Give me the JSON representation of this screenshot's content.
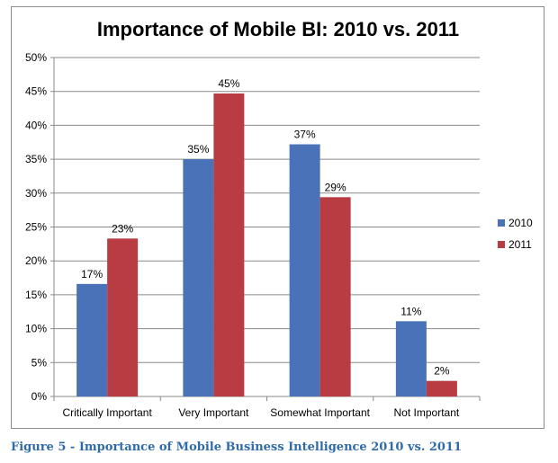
{
  "caption": "Figure 5 - Importance of Mobile Business Intelligence 2010 vs. 2011",
  "chart_data": {
    "type": "bar",
    "title": "Importance of Mobile BI: 2010 vs. 2011",
    "xlabel": "",
    "ylabel": "",
    "categories": [
      "Critically Important",
      "Very Important",
      "Somewhat Important",
      "Not Important"
    ],
    "series": [
      {
        "name": "2010",
        "color": "#4a72b8",
        "values": [
          16.6,
          35,
          37.2,
          11.1
        ],
        "labels": [
          "17%",
          "35%",
          "37%",
          "11%"
        ]
      },
      {
        "name": "2011",
        "color": "#b83c42",
        "values": [
          23.3,
          44.7,
          29.4,
          2.3
        ],
        "labels": [
          "23%",
          "45%",
          "29%",
          "2%"
        ]
      }
    ],
    "ylim": [
      0,
      50
    ],
    "yticks": [
      0,
      5,
      10,
      15,
      20,
      25,
      30,
      35,
      40,
      45,
      50
    ],
    "ytick_labels": [
      "0%",
      "5%",
      "10%",
      "15%",
      "20%",
      "25%",
      "30%",
      "35%",
      "40%",
      "45%",
      "50%"
    ],
    "grid": true,
    "legend_position": "right"
  }
}
